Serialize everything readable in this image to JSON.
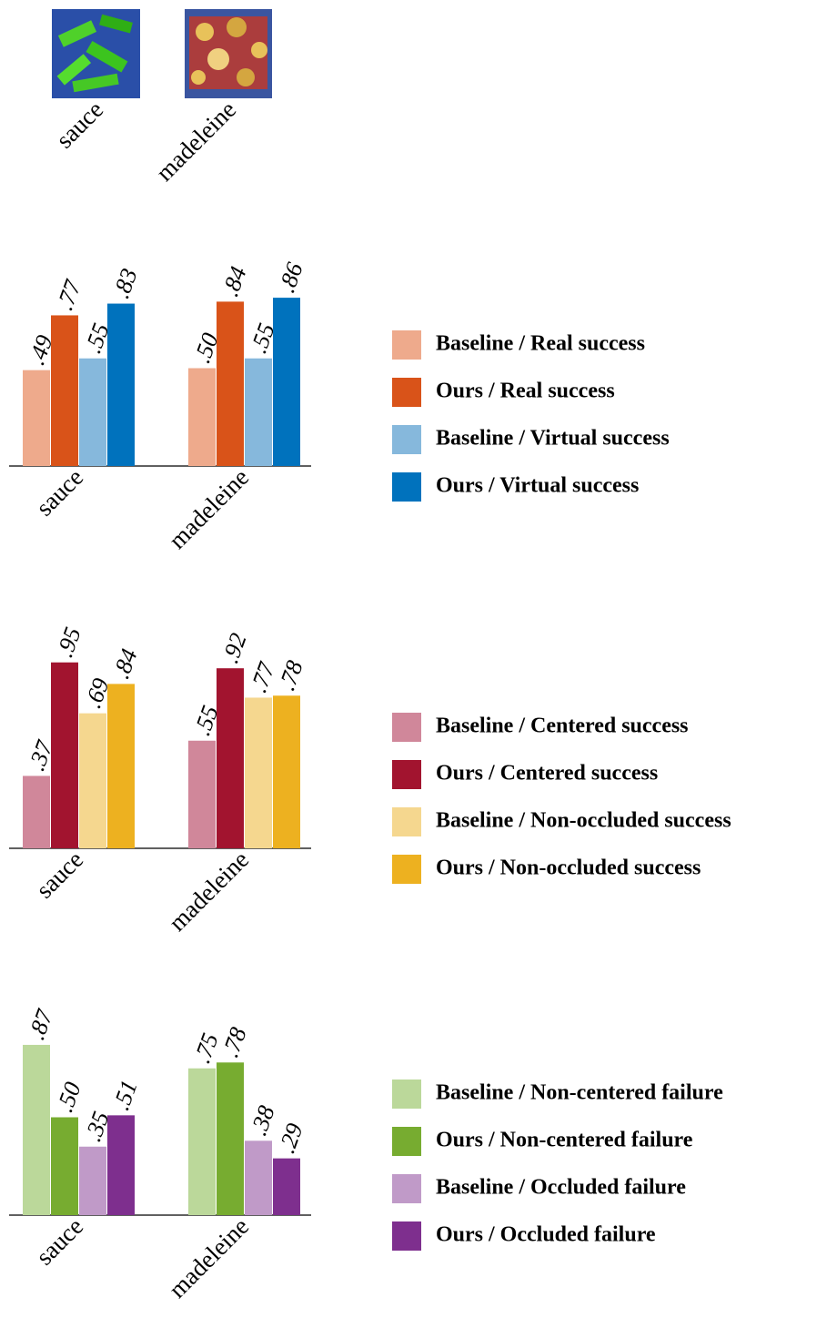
{
  "images": [
    {
      "label": "sauce"
    },
    {
      "label": "madeleine"
    }
  ],
  "chart_data": [
    {
      "type": "bar",
      "categories": [
        "sauce",
        "madeleine"
      ],
      "ylim": [
        0,
        1
      ],
      "series": [
        {
          "name": "Baseline / Real success",
          "color": "#eeaa8c",
          "values": [
            0.49,
            0.5
          ],
          "value_labels": [
            ".49",
            ".50"
          ]
        },
        {
          "name": "Ours / Real success",
          "color": "#d95319",
          "values": [
            0.77,
            0.84
          ],
          "value_labels": [
            ".77",
            ".84"
          ]
        },
        {
          "name": "Baseline / Virtual success",
          "color": "#86b8dc",
          "values": [
            0.55,
            0.55
          ],
          "value_labels": [
            ".55",
            ".55"
          ]
        },
        {
          "name": "Ours / Virtual success",
          "color": "#0072bd",
          "values": [
            0.83,
            0.86
          ],
          "value_labels": [
            ".83",
            ".86"
          ]
        }
      ]
    },
    {
      "type": "bar",
      "categories": [
        "sauce",
        "madeleine"
      ],
      "ylim": [
        0,
        1
      ],
      "series": [
        {
          "name": "Baseline / Centered success",
          "color": "#d0879a",
          "values": [
            0.37,
            0.55
          ],
          "value_labels": [
            ".37",
            ".55"
          ]
        },
        {
          "name": "Ours / Centered success",
          "color": "#a2142f",
          "values": [
            0.95,
            0.92
          ],
          "value_labels": [
            ".95",
            ".92"
          ]
        },
        {
          "name": "Baseline / Non-occluded success",
          "color": "#f5d78f",
          "values": [
            0.69,
            0.77
          ],
          "value_labels": [
            ".69",
            ".77"
          ]
        },
        {
          "name": "Ours / Non-occluded success",
          "color": "#edb120",
          "values": [
            0.84,
            0.78
          ],
          "value_labels": [
            ".84",
            ".78"
          ]
        }
      ]
    },
    {
      "type": "bar",
      "categories": [
        "sauce",
        "madeleine"
      ],
      "ylim": [
        0,
        1
      ],
      "series": [
        {
          "name": "Baseline / Non-centered failure",
          "color": "#bbd89a",
          "values": [
            0.87,
            0.75
          ],
          "value_labels": [
            ".87",
            ".75"
          ]
        },
        {
          "name": "Ours / Non-centered failure",
          "color": "#77ac30",
          "values": [
            0.5,
            0.78
          ],
          "value_labels": [
            ".50",
            ".78"
          ]
        },
        {
          "name": "Baseline / Occluded failure",
          "color": "#c09ac8",
          "values": [
            0.35,
            0.38
          ],
          "value_labels": [
            ".35",
            ".38"
          ]
        },
        {
          "name": "Ours / Occluded failure",
          "color": "#7e2f8e",
          "values": [
            0.51,
            0.29
          ],
          "value_labels": [
            ".51",
            ".29"
          ]
        }
      ]
    }
  ]
}
